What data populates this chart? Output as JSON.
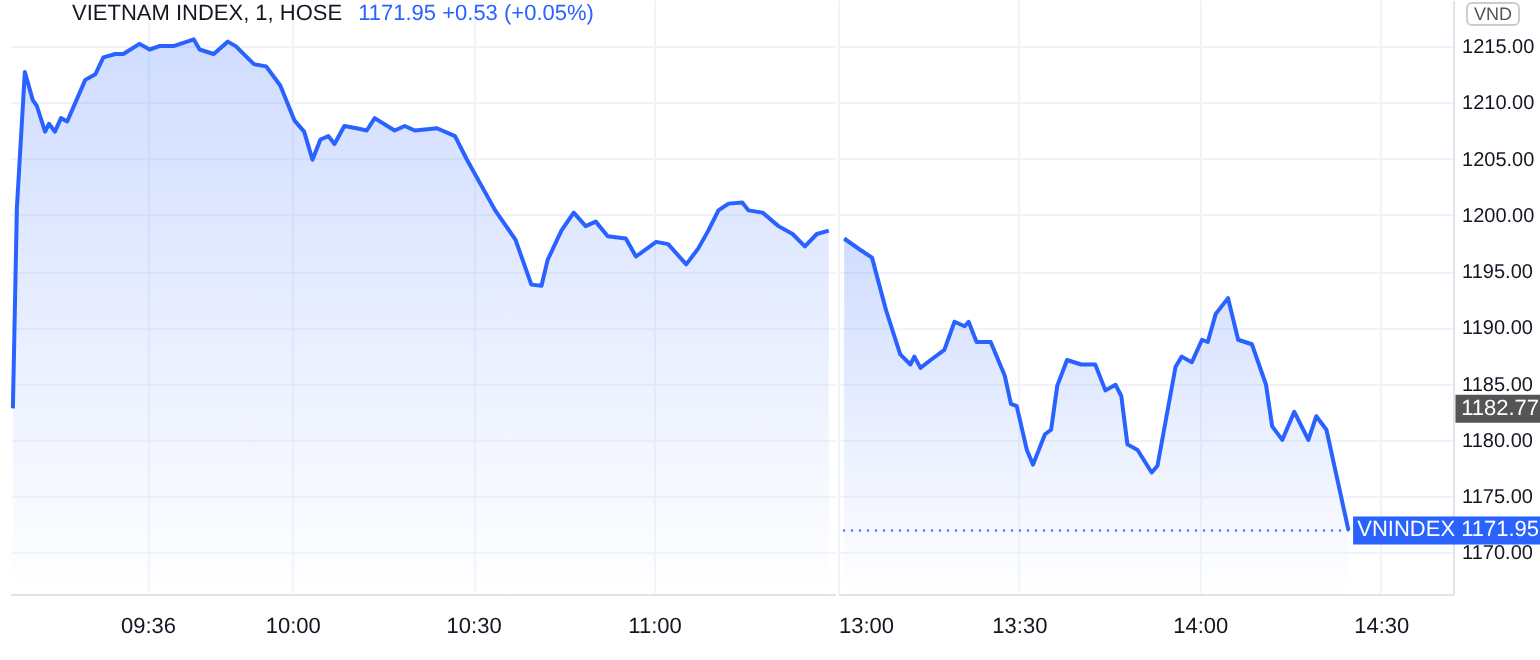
{
  "chart_data": [
    {
      "type": "area",
      "title": "VIETNAM INDEX, 1, HOSE",
      "subtitle": "1171.95 +0.53 (+0.05%)",
      "x": [
        9.228,
        9.239,
        9.261,
        9.283,
        9.294,
        9.317,
        9.328,
        9.344,
        9.361,
        9.378,
        9.428,
        9.456,
        9.478,
        9.511,
        9.533,
        9.578,
        9.606,
        9.633,
        9.672,
        9.728,
        9.744,
        9.783,
        9.822,
        9.844,
        9.894,
        9.928,
        9.967,
        10.006,
        10.033,
        10.056,
        10.078,
        10.1,
        10.117,
        10.144,
        10.178,
        10.206,
        10.228,
        10.283,
        10.311,
        10.339,
        10.4,
        10.45,
        10.483,
        10.561,
        10.617,
        10.661,
        10.689,
        10.706,
        10.744,
        10.778,
        10.811,
        10.839,
        10.872,
        10.922,
        10.95,
        11.006,
        11.039,
        11.089,
        11.122,
        11.15,
        11.178,
        11.206,
        11.244,
        11.261,
        11.3,
        11.344,
        11.383,
        11.417,
        11.45,
        11.483
      ],
      "series": [
        {
          "color": "#2962ff",
          "values": [
            1182.8,
            1200.6,
            1212.7,
            1210.2,
            1209.7,
            1207.4,
            1208.1,
            1207.4,
            1208.6,
            1208.3,
            1212.0,
            1212.5,
            1214.0,
            1214.3,
            1214.3,
            1215.2,
            1214.7,
            1215.0,
            1215.0,
            1215.6,
            1214.7,
            1214.3,
            1215.4,
            1215.0,
            1213.4,
            1213.2,
            1211.5,
            1208.4,
            1207.4,
            1204.9,
            1206.7,
            1207.0,
            1206.3,
            1207.9,
            1207.7,
            1207.5,
            1208.6,
            1207.5,
            1207.9,
            1207.5,
            1207.7,
            1207.0,
            1204.9,
            1200.4,
            1197.8,
            1193.8,
            1193.7,
            1196.0,
            1198.6,
            1200.2,
            1199.0,
            1199.4,
            1198.1,
            1197.9,
            1196.3,
            1197.6,
            1197.4,
            1195.6,
            1197.0,
            1198.6,
            1200.4,
            1201.0,
            1201.1,
            1200.4,
            1200.2,
            1199.0,
            1198.3,
            1197.2,
            1198.3,
            1198.6
          ]
        }
      ],
      "xlim": [
        9.22,
        11.5
      ],
      "ylim": [
        1166.3,
        1219.1
      ],
      "xticks": [
        {
          "value": 9.6,
          "label": "09:36"
        },
        {
          "value": 10,
          "label": "10:00"
        },
        {
          "value": 10.5,
          "label": "10:30"
        },
        {
          "value": 11,
          "label": "11:00"
        }
      ],
      "yticks": [
        1170,
        1175,
        1180,
        1185,
        1190,
        1195,
        1200,
        1205,
        1210,
        1215
      ],
      "tick_labels": "x",
      "grid": true,
      "marker": "none",
      "line_style": "solid"
    },
    {
      "type": "area",
      "annotations": [
        "VND",
        "1182.77"
      ],
      "x": [
        13.017,
        13.061,
        13.094,
        13.133,
        13.172,
        13.2,
        13.211,
        13.228,
        13.256,
        13.294,
        13.322,
        13.35,
        13.361,
        13.383,
        13.422,
        13.461,
        13.478,
        13.494,
        13.522,
        13.539,
        13.572,
        13.589,
        13.606,
        13.633,
        13.672,
        13.711,
        13.739,
        13.767,
        13.783,
        13.8,
        13.828,
        13.867,
        13.883,
        13.933,
        13.95,
        13.978,
        14.006,
        14.022,
        14.044,
        14.078,
        14.106,
        14.144,
        14.183,
        14.2,
        14.228,
        14.261,
        14.3,
        14.322,
        14.35,
        14.411
      ],
      "series": [
        {
          "color": "#2962ff",
          "values": [
            1197.9,
            1196.9,
            1196.2,
            1191.5,
            1187.6,
            1186.7,
            1187.4,
            1186.4,
            1187.1,
            1188.0,
            1190.5,
            1190.1,
            1190.5,
            1188.7,
            1188.7,
            1185.7,
            1183.2,
            1183.0,
            1179.1,
            1177.8,
            1180.5,
            1180.9,
            1184.8,
            1187.1,
            1186.7,
            1186.7,
            1184.4,
            1184.9,
            1183.9,
            1179.6,
            1179.1,
            1177.1,
            1177.7,
            1186.5,
            1187.4,
            1186.9,
            1188.9,
            1188.7,
            1191.2,
            1192.6,
            1188.9,
            1188.5,
            1184.9,
            1181.2,
            1180.0,
            1182.5,
            1180.0,
            1182.1,
            1180.9,
            1171.95
          ]
        }
      ],
      "xlim": [
        13,
        14.7
      ],
      "ylim": [
        1166.3,
        1219.1
      ],
      "xticks": [
        {
          "value": 13,
          "label": "13:00"
        },
        {
          "value": 13.5,
          "label": "13:30"
        },
        {
          "value": 14,
          "label": "14:00"
        },
        {
          "value": 14.5,
          "label": "14:30"
        }
      ],
      "yticks": [
        {
          "value": 1170,
          "label": "1170.00"
        },
        {
          "value": 1175,
          "label": "1175.00"
        },
        {
          "value": 1180,
          "label": "1180.00"
        },
        {
          "value": 1185,
          "label": "1185.00"
        },
        {
          "value": 1190,
          "label": "1190.00"
        },
        {
          "value": 1195,
          "label": "1195.00"
        },
        {
          "value": 1200,
          "label": "1200.00"
        },
        {
          "value": 1205,
          "label": "1205.00"
        },
        {
          "value": 1210,
          "label": "1210.00"
        },
        {
          "value": 1215,
          "label": "1215.00"
        }
      ],
      "ref_lines": [
        {
          "axis": "y",
          "value": 1171.95,
          "label": "VNINDEX 1171.95",
          "color": "#2962ff",
          "line_style": "dotted"
        }
      ],
      "grid": true,
      "marker": "none",
      "line_style": "solid"
    }
  ]
}
